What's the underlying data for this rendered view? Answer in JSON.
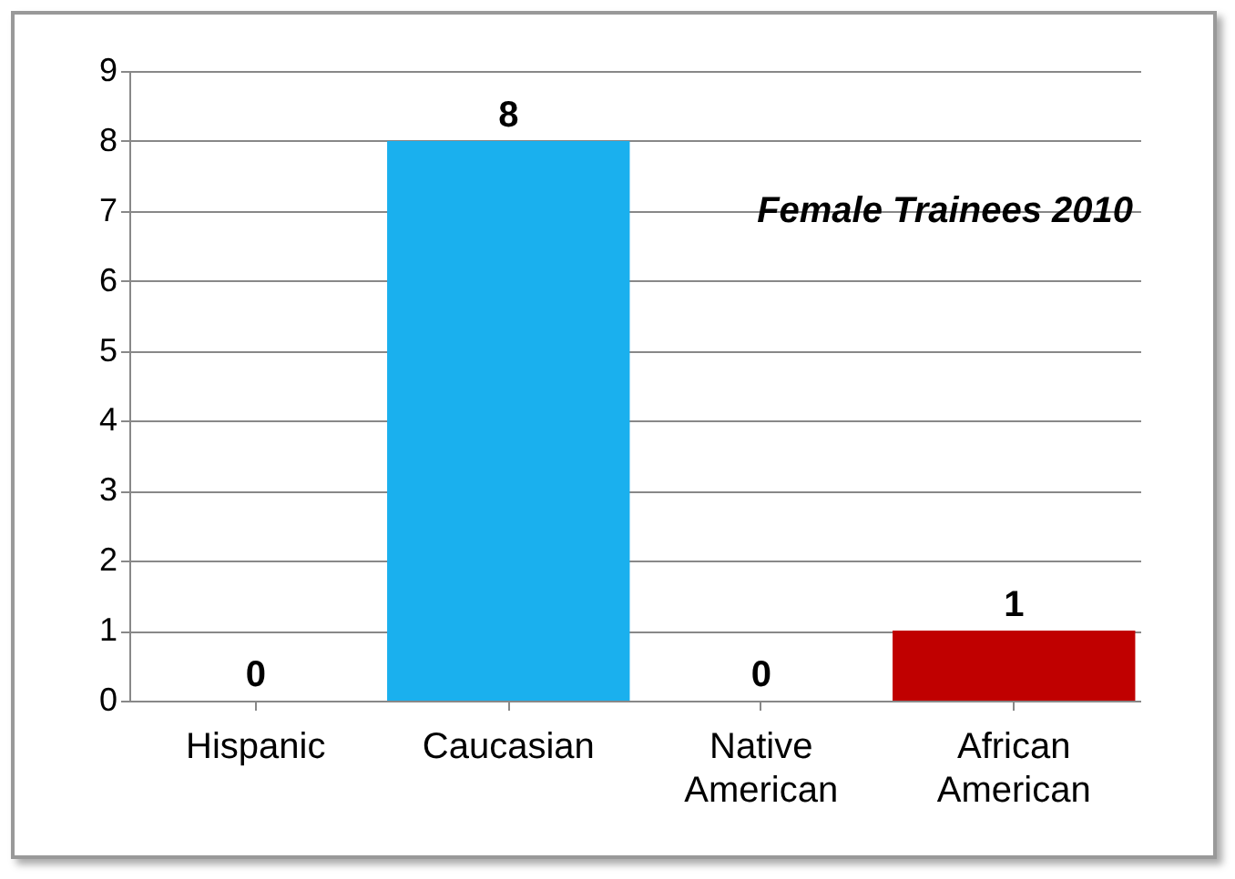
{
  "chart_data": {
    "type": "bar",
    "title": "Female Trainees 2010",
    "categories": [
      "Hispanic",
      "Caucasian",
      "Native American",
      "African American"
    ],
    "values": [
      0,
      8,
      0,
      1
    ],
    "colors": [
      "#1ab0ee",
      "#1ab0ee",
      "#1ab0ee",
      "#c00000"
    ],
    "ylim": [
      0,
      9
    ],
    "yticks": [
      0,
      1,
      2,
      3,
      4,
      5,
      6,
      7,
      8,
      9
    ],
    "grid": "y",
    "data_labels": true
  }
}
